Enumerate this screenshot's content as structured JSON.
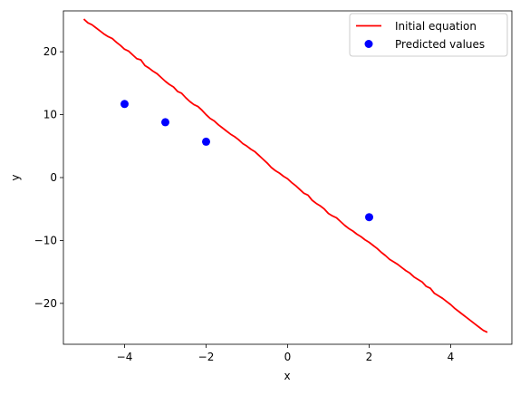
{
  "chart_data": {
    "type": "line",
    "title": "",
    "xlabel": "x",
    "ylabel": "y",
    "xlim": [
      -5.5,
      5.5
    ],
    "ylim": [
      -26.5,
      26.5
    ],
    "xticks": [
      -4,
      -2,
      0,
      2,
      4
    ],
    "xtick_labels": [
      "−4",
      "−2",
      "0",
      "2",
      "4"
    ],
    "yticks": [
      -20,
      -10,
      0,
      10,
      20
    ],
    "ytick_labels": [
      "−20",
      "−10",
      "0",
      "10",
      "20"
    ],
    "grid": false,
    "legend_position": "top-right",
    "series": [
      {
        "name": "Initial equation",
        "kind": "line",
        "color": "#ff0000",
        "x": [
          -5.0,
          -4.9,
          -4.8,
          -4.7,
          -4.6,
          -4.5,
          -4.4,
          -4.3,
          -4.2,
          -4.1,
          -4.0,
          -3.9,
          -3.8,
          -3.7,
          -3.6,
          -3.5,
          -3.4,
          -3.3,
          -3.2,
          -3.1,
          -3.0,
          -2.9,
          -2.8,
          -2.7,
          -2.6,
          -2.5,
          -2.4,
          -2.3,
          -2.2,
          -2.1,
          -2.0,
          -1.9,
          -1.8,
          -1.7,
          -1.6,
          -1.5,
          -1.4,
          -1.3,
          -1.2,
          -1.1,
          -1.0,
          -0.9,
          -0.8,
          -0.7,
          -0.6,
          -0.5,
          -0.4,
          -0.3,
          -0.2,
          -0.1,
          0.0,
          0.1,
          0.2,
          0.3,
          0.4,
          0.5,
          0.6,
          0.7,
          0.8,
          0.9,
          1.0,
          1.1,
          1.2,
          1.3,
          1.4,
          1.5,
          1.6,
          1.7,
          1.8,
          1.9,
          2.0,
          2.1,
          2.2,
          2.3,
          2.4,
          2.5,
          2.6,
          2.7,
          2.8,
          2.9,
          3.0,
          3.1,
          3.2,
          3.3,
          3.4,
          3.5,
          3.6,
          3.7,
          3.8,
          3.9,
          4.0,
          4.1,
          4.2,
          4.3,
          4.4,
          4.5,
          4.6,
          4.7,
          4.8,
          4.9
        ],
        "y": [
          25.2,
          24.6,
          24.3,
          23.8,
          23.3,
          22.8,
          22.4,
          22.1,
          21.5,
          21.0,
          20.4,
          20.1,
          19.5,
          18.9,
          18.7,
          17.8,
          17.4,
          16.9,
          16.5,
          15.9,
          15.3,
          14.8,
          14.4,
          13.7,
          13.4,
          12.7,
          12.1,
          11.6,
          11.3,
          10.7,
          10.0,
          9.4,
          9.0,
          8.4,
          7.9,
          7.4,
          6.9,
          6.5,
          6.0,
          5.4,
          5.0,
          4.5,
          4.1,
          3.5,
          2.9,
          2.3,
          1.6,
          1.1,
          0.7,
          0.2,
          -0.2,
          -0.8,
          -1.3,
          -1.9,
          -2.5,
          -2.8,
          -3.6,
          -4.1,
          -4.5,
          -5.0,
          -5.7,
          -6.1,
          -6.4,
          -7.0,
          -7.6,
          -8.1,
          -8.5,
          -9.0,
          -9.4,
          -9.9,
          -10.3,
          -10.8,
          -11.3,
          -11.9,
          -12.4,
          -13.0,
          -13.4,
          -13.8,
          -14.3,
          -14.8,
          -15.2,
          -15.8,
          -16.2,
          -16.6,
          -17.3,
          -17.6,
          -18.4,
          -18.8,
          -19.2,
          -19.7,
          -20.2,
          -20.8,
          -21.3,
          -21.8,
          -22.3,
          -22.8,
          -23.3,
          -23.8,
          -24.3,
          -24.6
        ]
      },
      {
        "name": "Predicted values",
        "kind": "scatter",
        "color": "#0000ff",
        "x": [
          -4,
          -3,
          -2,
          2
        ],
        "y": [
          11.7,
          8.8,
          5.7,
          -6.3
        ]
      }
    ]
  }
}
